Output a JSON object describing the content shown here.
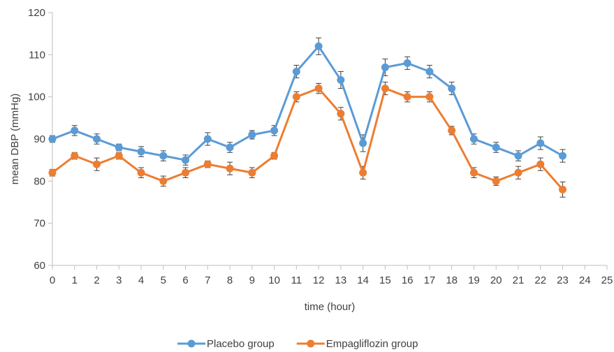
{
  "chart_data": {
    "type": "line",
    "title": "",
    "xlabel": "time (hour)",
    "ylabel": "mean DBP (mmHg)",
    "xlim": [
      0,
      25
    ],
    "ylim": [
      60,
      120
    ],
    "x_ticks": [
      "0",
      "1",
      "2",
      "3",
      "4",
      "5",
      "6",
      "7",
      "8",
      "9",
      "10",
      "11",
      "12",
      "13",
      "14",
      "15",
      "16",
      "17",
      "18",
      "19",
      "20",
      "21",
      "22",
      "23",
      "24",
      "25"
    ],
    "y_ticks": [
      "60",
      "70",
      "80",
      "90",
      "100",
      "110",
      "120"
    ],
    "x": [
      0,
      1,
      2,
      3,
      4,
      5,
      6,
      7,
      8,
      9,
      10,
      11,
      12,
      13,
      14,
      15,
      16,
      17,
      18,
      19,
      20,
      21,
      22,
      23
    ],
    "legend_position": "bottom",
    "grid": false,
    "error_bars": true,
    "series": [
      {
        "name": "Placebo group",
        "color": "#5b9bd5",
        "values": [
          90,
          92,
          90,
          88,
          87,
          86,
          85,
          90,
          88,
          91,
          92,
          106,
          112,
          104,
          89,
          107,
          108,
          106,
          102,
          90,
          88,
          86,
          89,
          86
        ],
        "errors": [
          0.8,
          1.2,
          1.2,
          0.8,
          1.2,
          1.2,
          1.2,
          1.5,
          1.2,
          1.0,
          1.2,
          1.5,
          2.0,
          2.0,
          2.0,
          2.0,
          1.5,
          1.5,
          1.5,
          1.2,
          1.2,
          1.2,
          1.5,
          1.5
        ]
      },
      {
        "name": "Empagliflozin group",
        "color": "#ed7d31",
        "values": [
          82,
          86,
          84,
          86,
          82,
          80,
          82,
          84,
          83,
          82,
          86,
          100,
          102,
          96,
          82,
          102,
          100,
          100,
          92,
          82,
          80,
          82,
          84,
          78
        ],
        "errors": [
          0.8,
          0.8,
          1.5,
          0.8,
          1.2,
          1.2,
          1.2,
          0.8,
          1.5,
          1.2,
          0.8,
          1.2,
          1.2,
          1.5,
          1.5,
          1.5,
          1.2,
          1.2,
          1.0,
          1.2,
          1.0,
          1.5,
          1.5,
          1.8
        ]
      }
    ]
  }
}
